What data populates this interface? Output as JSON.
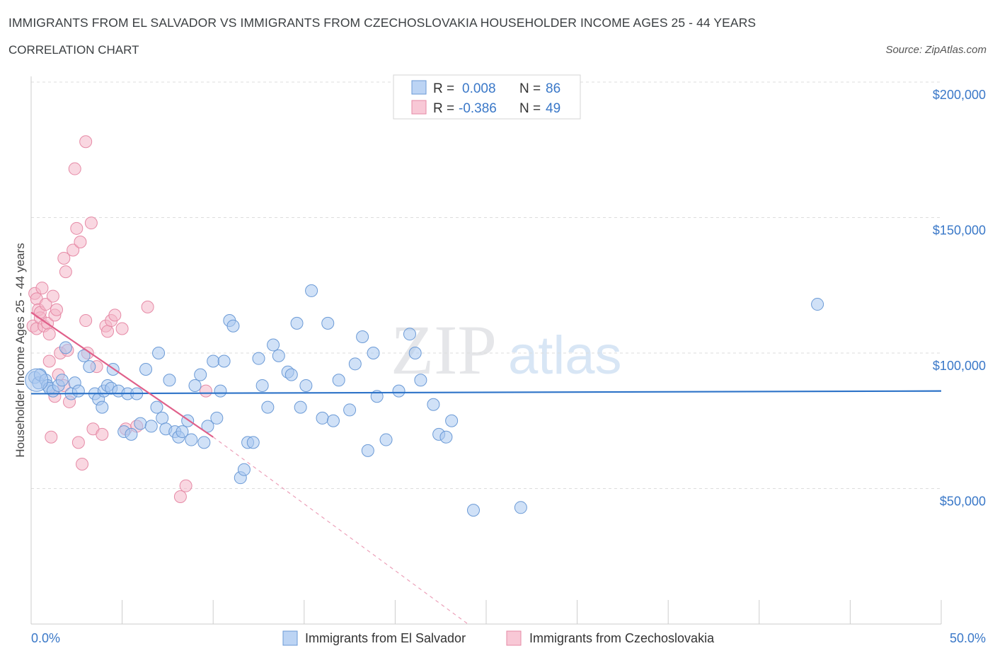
{
  "header": {
    "title": "IMMIGRANTS FROM EL SALVADOR VS IMMIGRANTS FROM CZECHOSLOVAKIA HOUSEHOLDER INCOME AGES 25 - 44 YEARS",
    "subtitle": "CORRELATION CHART",
    "source": "Source: ZipAtlas.com"
  },
  "watermark": {
    "zip": "ZIP",
    "atlas": "atlas"
  },
  "legend": {
    "r_label": "R =",
    "n_label": "N =",
    "series1": {
      "r": "0.008",
      "n": "86"
    },
    "series2": {
      "r": "-0.386",
      "n": "49"
    }
  },
  "colors": {
    "blue_fill": "#a9c8f0",
    "blue_stroke": "#6b9ad6",
    "blue_line": "#2d73c8",
    "pink_fill": "#f4b6c8",
    "pink_stroke": "#e68aa6",
    "pink_line": "#e0608a",
    "grid": "#dddddd",
    "axis_text": "#3a78c8"
  },
  "chart_data": {
    "type": "scatter",
    "title": "IMMIGRANTS FROM EL SALVADOR VS IMMIGRANTS FROM CZECHOSLOVAKIA HOUSEHOLDER INCOME AGES 25 - 44 YEARS",
    "ylabel": "Householder Income Ages 25 - 44 years",
    "xlim": [
      0,
      50
    ],
    "ylim": [
      0,
      200000
    ],
    "x_tick_labels": [
      "0.0%",
      "50.0%"
    ],
    "y_ticks": [
      50000,
      100000,
      150000,
      200000
    ],
    "y_tick_labels": [
      "$50,000",
      "$100,000",
      "$150,000",
      "$200,000"
    ],
    "grid": "horizontal dashed",
    "legend_position": "top-center",
    "series": [
      {
        "name": "Immigrants from El Salvador",
        "R": 0.008,
        "N": 86,
        "trend": {
          "x": [
            0,
            50
          ],
          "y": [
            85000,
            86000
          ]
        },
        "points": [
          [
            0.2,
            91000
          ],
          [
            0.4,
            89000
          ],
          [
            0.5,
            92000
          ],
          [
            0.8,
            90000
          ],
          [
            0.9,
            88000
          ],
          [
            1.0,
            87000
          ],
          [
            1.2,
            86000
          ],
          [
            1.5,
            88000
          ],
          [
            1.7,
            90000
          ],
          [
            1.9,
            102000
          ],
          [
            2.2,
            85000
          ],
          [
            2.4,
            89000
          ],
          [
            2.6,
            86000
          ],
          [
            2.9,
            99000
          ],
          [
            3.2,
            95000
          ],
          [
            3.5,
            85000
          ],
          [
            3.7,
            83000
          ],
          [
            3.9,
            80000
          ],
          [
            4.0,
            86000
          ],
          [
            4.2,
            88000
          ],
          [
            4.4,
            87000
          ],
          [
            4.5,
            94000
          ],
          [
            4.8,
            86000
          ],
          [
            5.1,
            71000
          ],
          [
            5.3,
            85000
          ],
          [
            5.5,
            70000
          ],
          [
            5.8,
            85000
          ],
          [
            6.0,
            74000
          ],
          [
            6.3,
            94000
          ],
          [
            6.6,
            73000
          ],
          [
            6.9,
            80000
          ],
          [
            7.0,
            100000
          ],
          [
            7.2,
            76000
          ],
          [
            7.4,
            72000
          ],
          [
            7.6,
            90000
          ],
          [
            7.9,
            71000
          ],
          [
            8.1,
            69000
          ],
          [
            8.3,
            71000
          ],
          [
            8.6,
            75000
          ],
          [
            8.8,
            68000
          ],
          [
            9.0,
            88000
          ],
          [
            9.3,
            92000
          ],
          [
            9.5,
            67000
          ],
          [
            9.7,
            73000
          ],
          [
            10.0,
            97000
          ],
          [
            10.2,
            76000
          ],
          [
            10.4,
            86000
          ],
          [
            10.6,
            97000
          ],
          [
            10.9,
            112000
          ],
          [
            11.1,
            110000
          ],
          [
            11.5,
            54000
          ],
          [
            11.7,
            57000
          ],
          [
            11.9,
            67000
          ],
          [
            12.2,
            67000
          ],
          [
            12.5,
            98000
          ],
          [
            12.7,
            88000
          ],
          [
            13.0,
            80000
          ],
          [
            13.3,
            103000
          ],
          [
            13.6,
            99000
          ],
          [
            14.1,
            93000
          ],
          [
            14.3,
            92000
          ],
          [
            14.6,
            111000
          ],
          [
            14.8,
            80000
          ],
          [
            15.1,
            88000
          ],
          [
            15.4,
            123000
          ],
          [
            16.0,
            76000
          ],
          [
            16.3,
            111000
          ],
          [
            16.6,
            75000
          ],
          [
            16.9,
            90000
          ],
          [
            17.5,
            79000
          ],
          [
            17.8,
            96000
          ],
          [
            18.2,
            106000
          ],
          [
            18.5,
            64000
          ],
          [
            18.8,
            100000
          ],
          [
            19.0,
            84000
          ],
          [
            19.5,
            68000
          ],
          [
            20.2,
            86000
          ],
          [
            20.8,
            107000
          ],
          [
            21.1,
            100000
          ],
          [
            21.4,
            90000
          ],
          [
            22.1,
            81000
          ],
          [
            22.4,
            70000
          ],
          [
            22.8,
            69000
          ],
          [
            23.1,
            75000
          ],
          [
            24.3,
            42000
          ],
          [
            26.9,
            43000
          ],
          [
            43.2,
            118000
          ]
        ]
      },
      {
        "name": "Immigrants from Czechoslovakia",
        "R": -0.386,
        "N": 49,
        "trend": {
          "x": [
            0,
            10
          ],
          "y": [
            115000,
            69000
          ],
          "dashed_extension": {
            "x": [
              10,
              24
            ],
            "y": [
              69000,
              0
            ]
          }
        },
        "points": [
          [
            0.1,
            110000
          ],
          [
            0.2,
            122000
          ],
          [
            0.3,
            120000
          ],
          [
            0.3,
            109000
          ],
          [
            0.4,
            116000
          ],
          [
            0.5,
            113000
          ],
          [
            0.5,
            115000
          ],
          [
            0.6,
            124000
          ],
          [
            0.7,
            110000
          ],
          [
            0.8,
            118000
          ],
          [
            0.9,
            111000
          ],
          [
            1.0,
            107000
          ],
          [
            1.0,
            97000
          ],
          [
            1.1,
            69000
          ],
          [
            1.2,
            121000
          ],
          [
            1.3,
            114000
          ],
          [
            1.3,
            84000
          ],
          [
            1.4,
            116000
          ],
          [
            1.5,
            92000
          ],
          [
            1.6,
            100000
          ],
          [
            1.8,
            135000
          ],
          [
            1.9,
            130000
          ],
          [
            2.0,
            101000
          ],
          [
            2.1,
            82000
          ],
          [
            2.3,
            138000
          ],
          [
            2.5,
            146000
          ],
          [
            2.6,
            67000
          ],
          [
            2.7,
            141000
          ],
          [
            2.8,
            59000
          ],
          [
            3.0,
            112000
          ],
          [
            3.1,
            100000
          ],
          [
            3.4,
            72000
          ],
          [
            3.6,
            95000
          ],
          [
            3.9,
            70000
          ],
          [
            4.1,
            110000
          ],
          [
            4.2,
            108000
          ],
          [
            4.4,
            112000
          ],
          [
            4.6,
            114000
          ],
          [
            5.0,
            109000
          ],
          [
            5.2,
            72000
          ],
          [
            2.4,
            168000
          ],
          [
            3.0,
            178000
          ],
          [
            3.3,
            148000
          ],
          [
            5.8,
            73000
          ],
          [
            6.4,
            117000
          ],
          [
            8.2,
            47000
          ],
          [
            8.5,
            51000
          ],
          [
            9.6,
            86000
          ],
          [
            1.8,
            88000
          ]
        ]
      }
    ]
  },
  "bottom_legend": {
    "series1_label": "Immigrants from El Salvador",
    "series2_label": "Immigrants from Czechoslovakia"
  }
}
